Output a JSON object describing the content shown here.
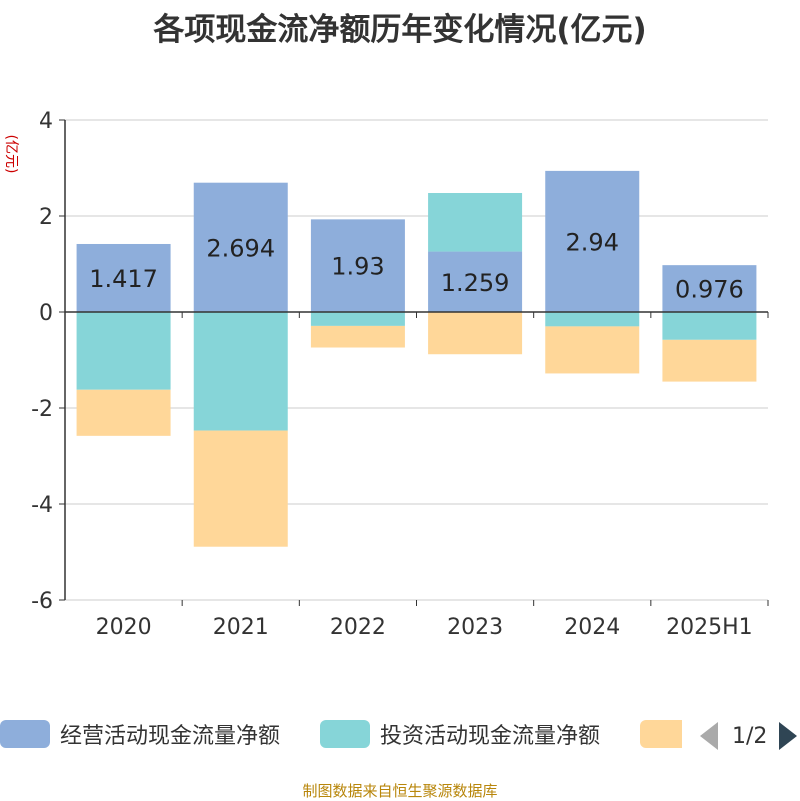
{
  "title": "各项现金流净额历年变化情况(亿元)",
  "unit": "(亿元)",
  "source": "制图数据来自恒生聚源数据库",
  "legend": {
    "items": [
      {
        "label": "经营活动现金流量净额",
        "color": "#8eaedb"
      },
      {
        "label": "投资活动现金流量净额",
        "color": "#86d5d8"
      },
      {
        "label": "",
        "color": "#ffd799"
      }
    ],
    "page": "1/2"
  },
  "chart_data": {
    "type": "bar",
    "stacked": true,
    "categories": [
      "2020",
      "2021",
      "2022",
      "2023",
      "2024",
      "2025H1"
    ],
    "ylim": [
      -6,
      4
    ],
    "yticks": [
      -6,
      -4,
      -2,
      0,
      2,
      4
    ],
    "grid": true,
    "legend_position": "bottom",
    "series": [
      {
        "name": "经营活动现金流量净额",
        "color": "#8eaedb",
        "values": [
          1.417,
          2.694,
          1.93,
          1.259,
          2.94,
          0.976
        ],
        "labels": [
          "1.417",
          "2.694",
          "1.93",
          "1.259",
          "2.94",
          "0.976"
        ]
      },
      {
        "name": "投资活动现金流量净额",
        "color": "#86d5d8",
        "values": [
          -1.62,
          -2.47,
          -0.29,
          1.22,
          -0.3,
          -0.58
        ]
      },
      {
        "color": "#ffd799",
        "values": [
          -0.96,
          -2.42,
          -0.45,
          -0.88,
          -0.98,
          -0.87
        ]
      }
    ]
  }
}
